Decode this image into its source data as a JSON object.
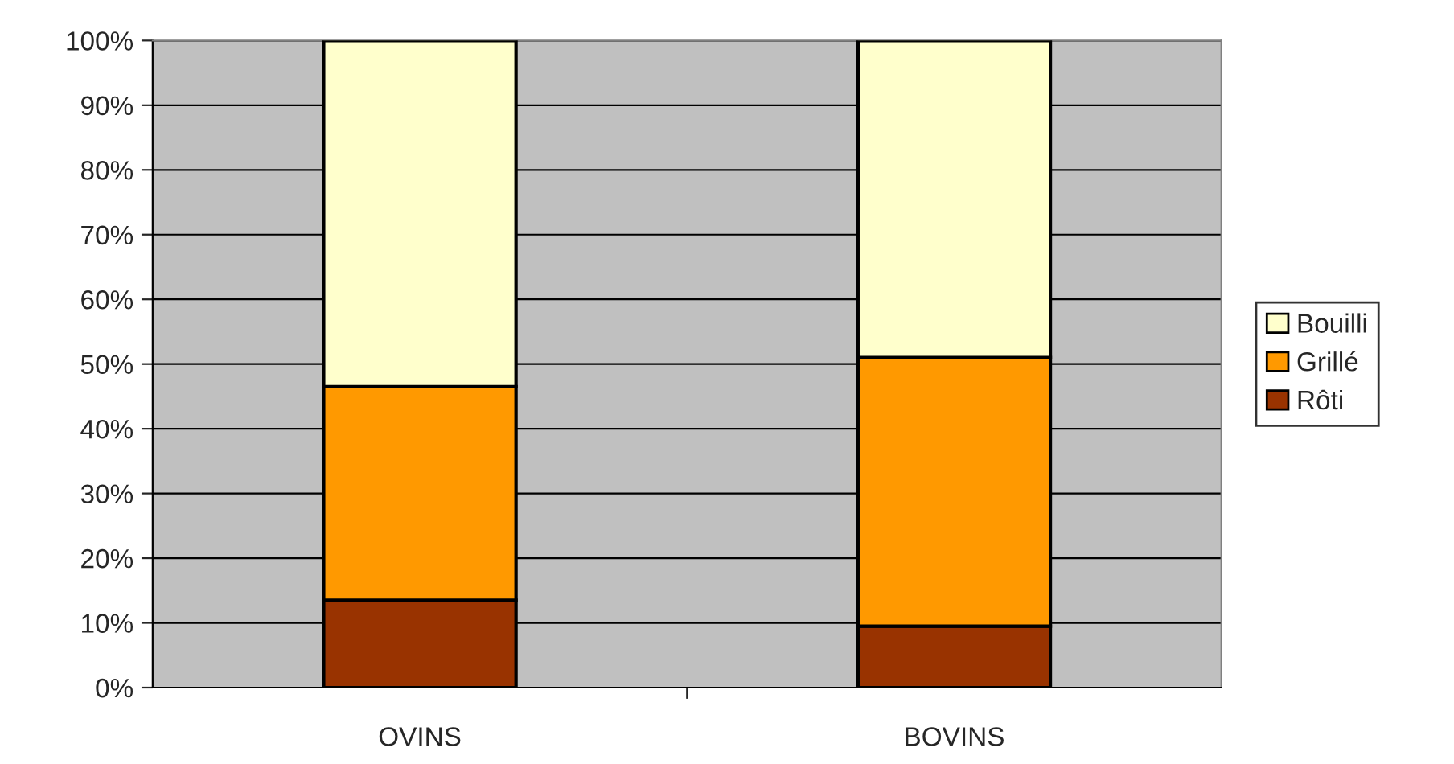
{
  "chart_data": {
    "type": "bar",
    "stacked": true,
    "categories": [
      "OVINS",
      "BOVINS"
    ],
    "series": [
      {
        "name": "Rôti",
        "color": "#993300",
        "values": [
          13.5,
          9.5
        ]
      },
      {
        "name": "Grillé",
        "color": "#ff9900",
        "values": [
          33,
          41.5
        ]
      },
      {
        "name": "Bouilli",
        "color": "#ffffcc",
        "values": [
          53.5,
          49
        ]
      }
    ],
    "ylim": [
      0,
      100
    ],
    "yticks": [
      {
        "value": 0,
        "label": "0%"
      },
      {
        "value": 10,
        "label": "10%"
      },
      {
        "value": 20,
        "label": "20%"
      },
      {
        "value": 30,
        "label": "30%"
      },
      {
        "value": 40,
        "label": "40%"
      },
      {
        "value": 50,
        "label": "50%"
      },
      {
        "value": 60,
        "label": "60%"
      },
      {
        "value": 70,
        "label": "70%"
      },
      {
        "value": 80,
        "label": "80%"
      },
      {
        "value": 90,
        "label": "90%"
      },
      {
        "value": 100,
        "label": "100%"
      }
    ],
    "grid": "y",
    "legend": "right"
  }
}
